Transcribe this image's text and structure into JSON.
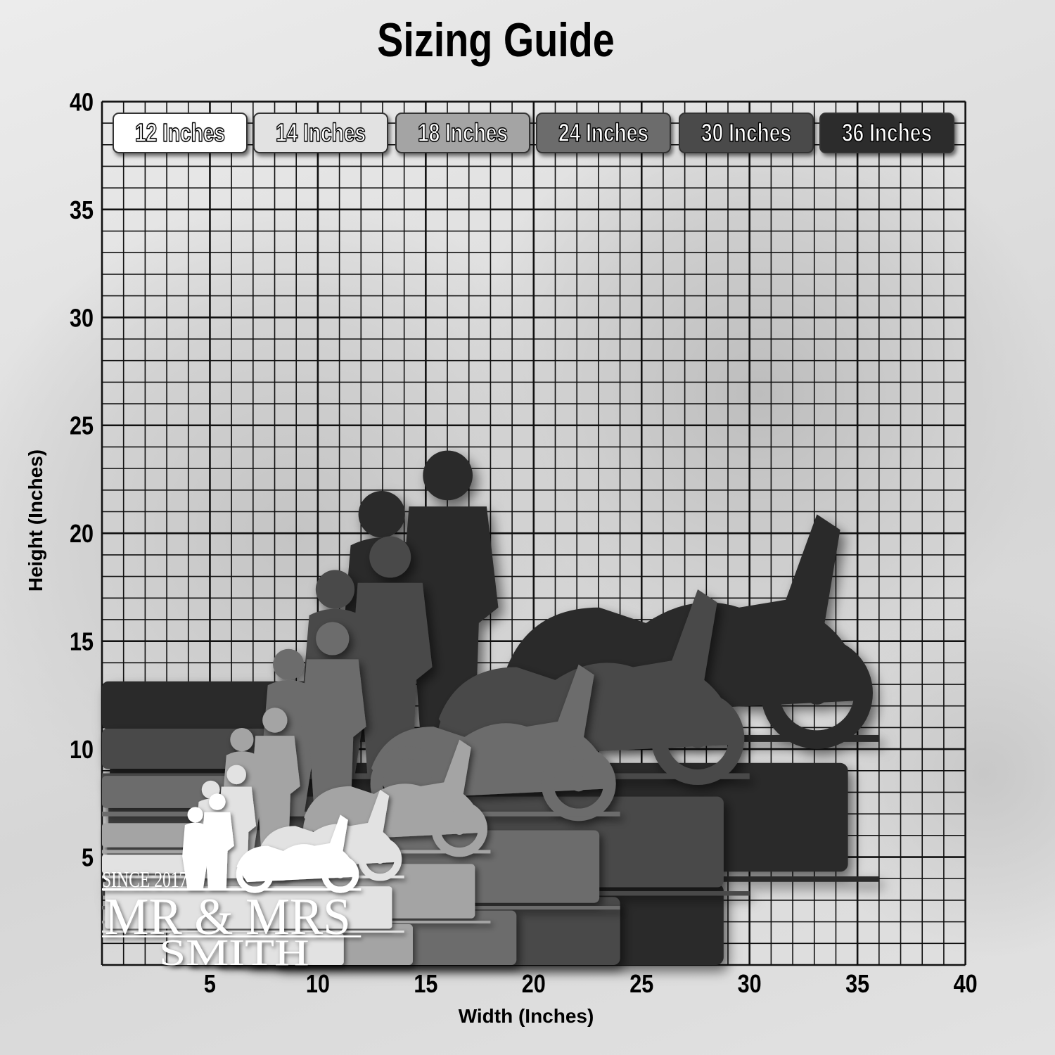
{
  "title": "Sizing Guide",
  "axes": {
    "x_label": "Width (Inches)",
    "y_label": "Height (Inches)",
    "x_ticks": [
      "5",
      "10",
      "15",
      "20",
      "25",
      "30",
      "35",
      "40"
    ],
    "y_ticks": [
      "5",
      "10",
      "15",
      "20",
      "25",
      "30",
      "35",
      "40"
    ],
    "range": [
      0,
      40
    ],
    "grid": "1 inch squares"
  },
  "sizes": [
    {
      "label": "12 Inches",
      "inches": 12,
      "color": "#ffffff"
    },
    {
      "label": "14 Inches",
      "inches": 14,
      "color": "#e2e2e2"
    },
    {
      "label": "18 Inches",
      "inches": 18,
      "color": "#a4a4a4"
    },
    {
      "label": "24 Inches",
      "inches": 24,
      "color": "#6c6c6c"
    },
    {
      "label": "30 Inches",
      "inches": 30,
      "color": "#4a4a4a"
    },
    {
      "label": "36 Inches",
      "inches": 36,
      "color": "#2c2c2c"
    }
  ],
  "product": {
    "since": "SINCE 2017",
    "line1": "MR & MRS",
    "line2": "SMITH",
    "graphics": [
      "couple-silhouette",
      "motorcycle-silhouette"
    ]
  }
}
